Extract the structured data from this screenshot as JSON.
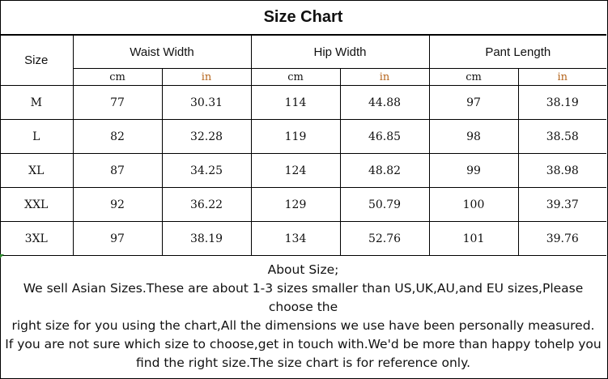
{
  "title": "Size Chart",
  "headers": {
    "size": "Size",
    "waist": "Waist Width",
    "hip": "Hip Width",
    "length": "Pant Length"
  },
  "units": {
    "cm": "cm",
    "in": "in"
  },
  "rows": [
    {
      "size": "M",
      "waist_cm": "77",
      "waist_in": "30.31",
      "hip_cm": "114",
      "hip_in": "44.88",
      "len_cm": "97",
      "len_in": "38.19"
    },
    {
      "size": "L",
      "waist_cm": "82",
      "waist_in": "32.28",
      "hip_cm": "119",
      "hip_in": "46.85",
      "len_cm": "98",
      "len_in": "38.58"
    },
    {
      "size": "XL",
      "waist_cm": "87",
      "waist_in": "34.25",
      "hip_cm": "124",
      "hip_in": "48.82",
      "len_cm": "99",
      "len_in": "38.98"
    },
    {
      "size": "XXL",
      "waist_cm": "92",
      "waist_in": "36.22",
      "hip_cm": "129",
      "hip_in": "50.79",
      "len_cm": "100",
      "len_in": "39.37"
    },
    {
      "size": "3XL",
      "waist_cm": "97",
      "waist_in": "38.19",
      "hip_cm": "134",
      "hip_in": "52.76",
      "len_cm": "101",
      "len_in": "39.76"
    }
  ],
  "about": {
    "heading": "About Size;",
    "line1": "We sell Asian Sizes.These are about 1-3 sizes smaller than US,UK,AU,and EU sizes,Please choose the",
    "line2": "right size for you using the chart,All the dimensions we use have been personally measured.",
    "line3": "If you are not sure which size to choose,get in touch with.We'd be more than happy tohelp you",
    "line4": "find the right size.The size chart is for reference only."
  },
  "colors": {
    "inch_text": "#b5651d",
    "border": "#000000",
    "corner_mark": "#2e8b2e"
  }
}
